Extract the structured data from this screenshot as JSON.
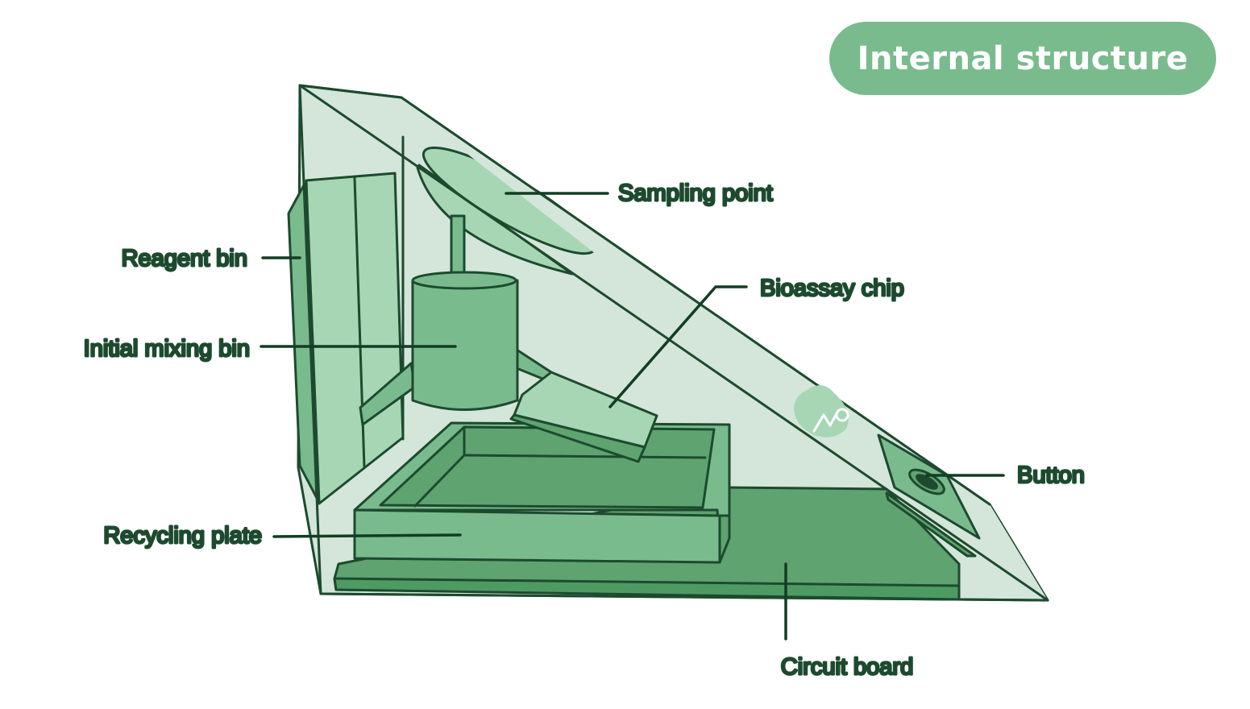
{
  "title": "Internal structure",
  "labels": {
    "sampling_point": "Sampling point",
    "reagent_bin": "Reagent bin",
    "bioassay_chip": "Bioassay chip",
    "initial_mixing_bin": "Initial mixing bin",
    "button": "Button",
    "recycling_plate": "Recycling plate",
    "circuit_board": "Circuit board"
  },
  "colors": {
    "outline": "#1d4a2e",
    "shell": "#d3e6d9",
    "light_green": "#a7d6b4",
    "mid_green": "#7bbd8d",
    "dark_green": "#5ea370",
    "title_bg": "#79bb8d"
  }
}
